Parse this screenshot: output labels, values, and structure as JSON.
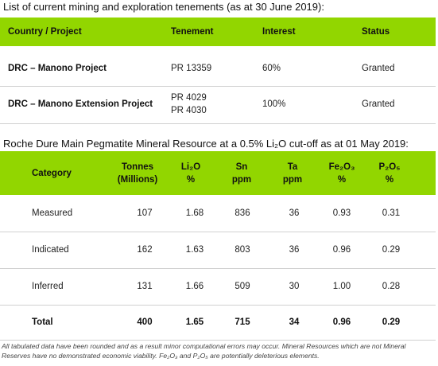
{
  "heading1": "List of current mining and exploration tenements (as at 30 June 2019):",
  "tenements": {
    "header": [
      "Country / Project",
      "Tenement",
      "Interest",
      "Status"
    ],
    "rows": [
      [
        [
          "DRC – Manono Project"
        ],
        [
          "PR 13359"
        ],
        [
          "60%"
        ],
        [
          "Granted"
        ]
      ],
      [
        [
          "DRC – Manono Extension Project"
        ],
        [
          "PR 4029",
          "PR 4030"
        ],
        [
          "100%"
        ],
        [
          "Granted"
        ]
      ]
    ]
  },
  "heading2": "Roche Dure Main Pegmatite Mineral Resource at a 0.5% Li₂O cut-off as at 01 May 2019:",
  "resource": {
    "header": [
      [
        "Category"
      ],
      [
        "Tonnes",
        "(Millions)"
      ],
      [
        "Li₂O",
        "%"
      ],
      [
        "Sn",
        "ppm"
      ],
      [
        "Ta",
        "ppm"
      ],
      [
        "Fe₂O₃",
        "%"
      ],
      [
        "P₂O₅",
        "%"
      ]
    ],
    "rows": [
      [
        "Measured",
        "107",
        "1.68",
        "836",
        "36",
        "0.93",
        "0.31"
      ],
      [
        "Indicated",
        "162",
        "1.63",
        "803",
        "36",
        "0.96",
        "0.29"
      ],
      [
        "Inferred",
        "131",
        "1.66",
        "509",
        "30",
        "1.00",
        "0.28"
      ],
      [
        "Total",
        "400",
        "1.65",
        "715",
        "34",
        "0.96",
        "0.29"
      ]
    ]
  },
  "footnote": "All tabulated data have been rounded and as a result minor computational errors may occur. Mineral Resources which are not Mineral Reserves have no demonstrated economic viability. Fe₂O₃ and P₂O₅ are potentially deleterious elements."
}
